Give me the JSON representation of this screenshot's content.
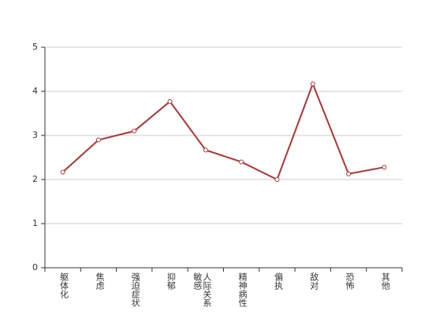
{
  "chart_data": {
    "type": "line",
    "categories": [
      "躯体化",
      "焦虑",
      "强迫症状",
      "抑郁",
      "人际关系敏感",
      "精神病性",
      "偏执",
      "敌对",
      "恐怖",
      "其他"
    ],
    "series": [
      {
        "color": "#b83232",
        "values": [
          2.17,
          2.9,
          3.1,
          3.77,
          2.67,
          2.4,
          2.0,
          4.17,
          2.13,
          2.28
        ]
      }
    ],
    "ylim": [
      0,
      5
    ],
    "yticks": [
      0,
      1,
      2,
      3,
      4,
      5
    ],
    "grid": true
  }
}
